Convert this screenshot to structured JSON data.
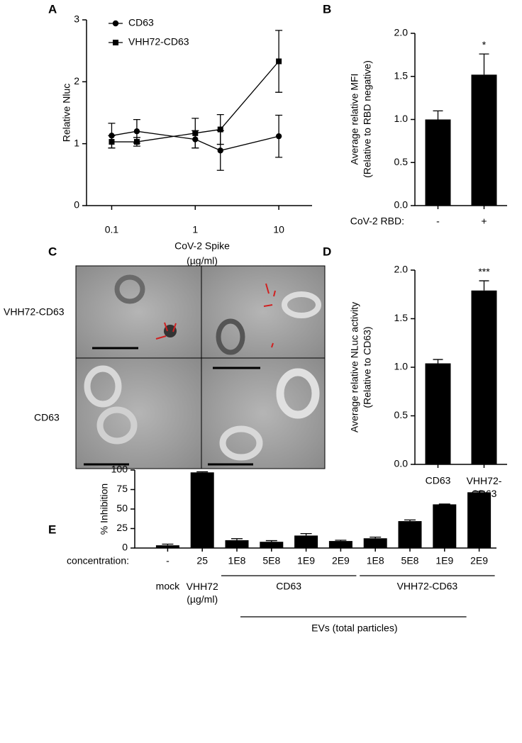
{
  "chart_data": [
    {
      "panel": "A",
      "type": "line",
      "xscale": "log",
      "xlabel": [
        "CoV-2  Spike",
        "(µg/ml)"
      ],
      "ylabel": [
        "Relative Nluc"
      ],
      "x": [
        0.1,
        0.2,
        1,
        2,
        10
      ],
      "xlim": [
        0.05,
        25
      ],
      "xticks": [
        0.1,
        1,
        10
      ],
      "ylim": [
        0,
        3
      ],
      "yticks": [
        0,
        1,
        2,
        3
      ],
      "series": [
        {
          "name": "CD63",
          "color": "#000000",
          "marker": "circle",
          "values": [
            1.13,
            1.2,
            1.07,
            0.89,
            1.12
          ],
          "errors": [
            0.2,
            0.19,
            0.14,
            0.32,
            0.34
          ]
        },
        {
          "name": "VHH72-CD63",
          "color": "#000000",
          "marker": "square",
          "values": [
            1.03,
            1.03,
            1.17,
            1.23,
            2.33
          ],
          "errors": [
            0.1,
            0.07,
            0.24,
            0.24,
            0.5
          ]
        }
      ]
    },
    {
      "panel": "B",
      "type": "bar",
      "ylabel": [
        "Average relative MFI",
        "(Relative to  RBD negative)"
      ],
      "xlabel": [
        "CoV-2 RBD:"
      ],
      "categories": [
        "-",
        "+"
      ],
      "values": [
        1.0,
        1.52
      ],
      "errors": [
        0.1,
        0.24
      ],
      "annotations": [
        null,
        "*"
      ],
      "color": "#000000",
      "ylim": [
        0,
        2
      ],
      "yticks": [
        {
          "value": 0,
          "label": "0.0"
        },
        {
          "value": 0.5,
          "label": "0.5"
        },
        {
          "value": 1,
          "label": "1.0"
        },
        {
          "value": 1.5,
          "label": "1.5"
        },
        {
          "value": 2,
          "label": "2.0"
        }
      ]
    },
    {
      "panel": "D",
      "type": "bar",
      "ylabel": [
        "Average relative NLuc activity",
        "(Relative to CD63)"
      ],
      "xlabel": [],
      "categories": [
        "CD63",
        "VHH72-\nCD63"
      ],
      "values": [
        1.04,
        1.79
      ],
      "errors": [
        0.04,
        0.1
      ],
      "annotations": [
        null,
        "***"
      ],
      "color": "#000000",
      "ylim": [
        0,
        2
      ],
      "yticks": [
        {
          "value": 0,
          "label": "0.0"
        },
        {
          "value": 0.5,
          "label": "0.5"
        },
        {
          "value": 1,
          "label": "1.0"
        },
        {
          "value": 1.5,
          "label": "1.5"
        },
        {
          "value": 2,
          "label": "2.0"
        }
      ]
    },
    {
      "panel": "E",
      "type": "bar",
      "ylabel": [
        "% Inhibition"
      ],
      "xlabel": [
        "concentration:"
      ],
      "categories": [
        "-",
        "25",
        "1E8",
        "5E8",
        "1E9",
        "2E9",
        "1E8",
        "5E8",
        "1E9",
        "2E9"
      ],
      "values": [
        3.5,
        97,
        10,
        8,
        16,
        9,
        12.5,
        34.5,
        56,
        71.5
      ],
      "errors": [
        1.5,
        0.8,
        2,
        1.5,
        2.5,
        1,
        1.5,
        1.5,
        0.5,
        1.2
      ],
      "color": "#000000",
      "ylim": [
        0,
        100
      ],
      "yticks": [
        0,
        25,
        50,
        75,
        100
      ],
      "groups": [
        "mock",
        "VHH72\n(µg/ml)",
        "CD63",
        "VHH72-CD63"
      ],
      "group_label": "EVs (total particles)"
    }
  ],
  "micrographs": {
    "panel": "C",
    "rows": [
      "VHH72-CD63",
      "CD63"
    ]
  }
}
